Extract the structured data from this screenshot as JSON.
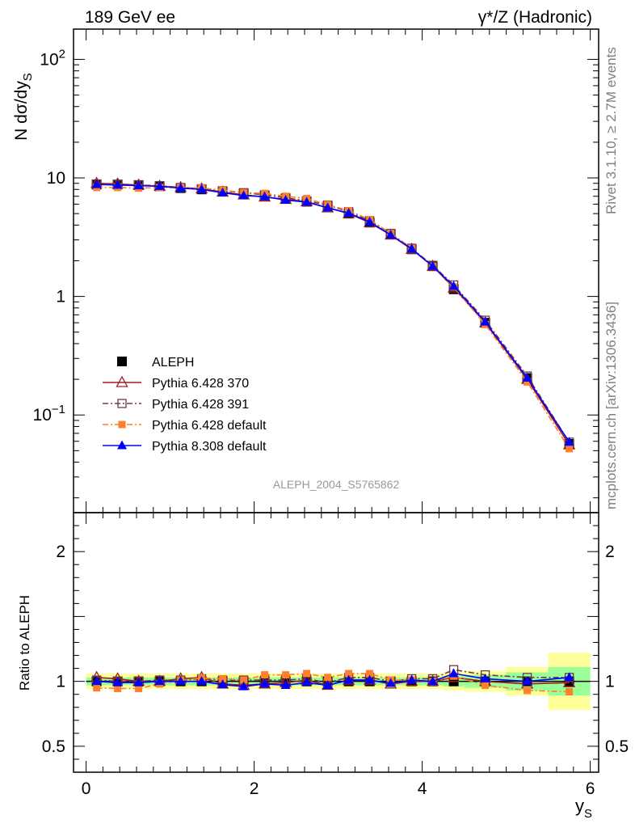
{
  "header": {
    "left_title": "189 GeV ee",
    "right_title": "γ*/Z (Hadronic)"
  },
  "side_labels": {
    "rivet": "Rivet 3.1.10, ≥ 2.7M events",
    "mcplots": "mcplots.cern.ch [arXiv:1306.3436]"
  },
  "watermark": "ALEPH_2004_S5765862",
  "chart_data": [
    {
      "type": "line",
      "panel": "main",
      "ylabel": "N dσ/dy_S",
      "yscale": "log",
      "ylim": [
        0.015,
        180
      ],
      "xlim": [
        -0.15,
        6.1
      ],
      "yticks": [
        {
          "v": 0.1,
          "label": "10^-1"
        },
        {
          "v": 1,
          "label": "1"
        },
        {
          "v": 10,
          "label": "10"
        },
        {
          "v": 100,
          "label": "10^2"
        }
      ],
      "legend_position": "bottom-left",
      "x": [
        0.125,
        0.375,
        0.625,
        0.875,
        1.125,
        1.375,
        1.625,
        1.875,
        2.125,
        2.375,
        2.625,
        2.875,
        3.125,
        3.375,
        3.625,
        3.875,
        4.125,
        4.375,
        4.75,
        5.25,
        5.75
      ],
      "series": [
        {
          "name": "ALEPH",
          "color": "#000000",
          "marker": "square-filled",
          "dash": "none",
          "values": [
            8.8,
            8.8,
            8.7,
            8.5,
            8.2,
            8.0,
            7.7,
            7.4,
            7.1,
            6.7,
            6.3,
            5.8,
            5.0,
            4.2,
            3.35,
            2.5,
            1.8,
            1.15,
            0.6,
            0.205,
            0.057
          ]
        },
        {
          "name": "Pythia 6.428 370",
          "color": "#a01c20",
          "marker": "triangle-open",
          "dash": "none",
          "values": [
            9.0,
            8.9,
            8.7,
            8.5,
            8.3,
            8.1,
            7.6,
            7.2,
            6.9,
            6.6,
            6.3,
            5.6,
            5.0,
            4.2,
            3.3,
            2.5,
            1.8,
            1.18,
            0.6,
            0.2,
            0.056
          ]
        },
        {
          "name": "Pythia 6.428 391",
          "color": "#6e3a46",
          "marker": "square-open",
          "dash": "dashdot",
          "values": [
            8.9,
            8.8,
            8.7,
            8.6,
            8.3,
            8.1,
            7.8,
            7.5,
            7.2,
            6.8,
            6.4,
            5.9,
            5.2,
            4.35,
            3.4,
            2.55,
            1.83,
            1.25,
            0.63,
            0.213,
            0.059
          ]
        },
        {
          "name": "Pythia 6.428 default",
          "color": "#ff7f2a",
          "marker": "square-filled-small",
          "dash": "dashdot",
          "values": [
            8.3,
            8.3,
            8.2,
            8.3,
            8.3,
            8.2,
            7.9,
            7.5,
            7.4,
            7.0,
            6.7,
            5.95,
            5.3,
            4.45,
            3.4,
            2.55,
            1.8,
            1.2,
            0.58,
            0.19,
            0.052
          ]
        },
        {
          "name": "Pythia 8.308 default",
          "color": "#0000ff",
          "marker": "triangle-filled",
          "dash": "none",
          "values": [
            8.8,
            8.7,
            8.6,
            8.5,
            8.2,
            8.0,
            7.5,
            7.1,
            6.95,
            6.5,
            6.25,
            5.6,
            5.05,
            4.25,
            3.3,
            2.52,
            1.8,
            1.22,
            0.61,
            0.205,
            0.059
          ]
        }
      ]
    },
    {
      "type": "line",
      "panel": "ratio",
      "ylabel": "Ratio to ALEPH",
      "xlabel": "y_S",
      "ylim": [
        0.3,
        2.3
      ],
      "xlim": [
        -0.15,
        6.1
      ],
      "xticks": [
        0,
        2,
        4,
        6
      ],
      "yticks": [
        {
          "v": 0.5,
          "label": "0.5"
        },
        {
          "v": 1,
          "label": "1"
        },
        {
          "v": 2,
          "label": "2"
        }
      ],
      "x": [
        0.125,
        0.375,
        0.625,
        0.875,
        1.125,
        1.375,
        1.625,
        1.875,
        2.125,
        2.375,
        2.625,
        2.875,
        3.125,
        3.375,
        3.625,
        3.875,
        4.125,
        4.375,
        4.75,
        5.25,
        5.75
      ],
      "bins": [
        0,
        0.25,
        0.5,
        0.75,
        1.0,
        1.25,
        1.5,
        1.75,
        2.0,
        2.25,
        2.5,
        2.75,
        3.0,
        3.25,
        3.5,
        3.75,
        4.0,
        4.25,
        4.5,
        5.0,
        5.5,
        6.0
      ],
      "band_stat": [
        0.03,
        0.03,
        0.03,
        0.03,
        0.03,
        0.03,
        0.03,
        0.03,
        0.03,
        0.03,
        0.03,
        0.03,
        0.03,
        0.03,
        0.03,
        0.03,
        0.03,
        0.04,
        0.05,
        0.07,
        0.11
      ],
      "band_total": [
        0.06,
        0.06,
        0.06,
        0.06,
        0.06,
        0.06,
        0.06,
        0.06,
        0.06,
        0.06,
        0.06,
        0.06,
        0.06,
        0.06,
        0.06,
        0.06,
        0.06,
        0.07,
        0.08,
        0.11,
        0.22
      ],
      "series": [
        {
          "name": "Pythia 6.428 370",
          "values": [
            1.03,
            1.02,
            1.0,
            1.0,
            1.02,
            1.03,
            0.98,
            0.97,
            0.98,
            0.99,
            1.01,
            0.97,
            1.01,
            1.01,
            0.98,
            1.0,
            1.0,
            1.03,
            1.0,
            0.98,
            0.99
          ]
        },
        {
          "name": "Pythia 6.428 391",
          "values": [
            1.01,
            1.0,
            1.0,
            1.01,
            1.01,
            1.02,
            1.01,
            1.01,
            1.01,
            1.01,
            1.02,
            0.99,
            1.03,
            1.03,
            1.0,
            1.02,
            1.02,
            1.09,
            1.05,
            1.03,
            1.03
          ]
        },
        {
          "name": "Pythia 6.428 default",
          "values": [
            0.95,
            0.945,
            0.945,
            0.98,
            1.01,
            1.025,
            1.02,
            1.01,
            1.05,
            1.05,
            1.06,
            1.03,
            1.06,
            1.06,
            1.01,
            1.01,
            1.0,
            1.04,
            0.97,
            0.93,
            0.92
          ]
        },
        {
          "name": "Pythia 8.308 default",
          "values": [
            1.0,
            0.99,
            0.99,
            1.0,
            1.0,
            1.0,
            0.975,
            0.96,
            0.98,
            0.97,
            0.99,
            0.97,
            1.01,
            1.01,
            0.985,
            1.01,
            1.0,
            1.06,
            1.02,
            1.0,
            1.03
          ]
        }
      ]
    }
  ]
}
